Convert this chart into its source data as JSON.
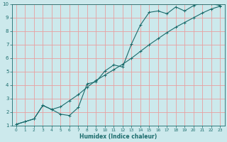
{
  "xlabel": "Humidex (Indice chaleur)",
  "ylabel": "",
  "background_color": "#cce9ec",
  "grid_color": "#e8a0a0",
  "line_color": "#1a6b6b",
  "xlim": [
    -0.5,
    23.5
  ],
  "ylim": [
    1,
    10
  ],
  "xticks": [
    0,
    1,
    2,
    3,
    4,
    5,
    6,
    7,
    8,
    9,
    10,
    11,
    12,
    13,
    14,
    15,
    16,
    17,
    18,
    19,
    20,
    21,
    22,
    23
  ],
  "yticks": [
    1,
    2,
    3,
    4,
    5,
    6,
    7,
    8,
    9,
    10
  ],
  "line1_x": [
    0,
    1,
    2,
    3,
    4,
    5,
    6,
    7,
    8,
    9,
    10,
    11,
    12,
    13,
    14,
    15,
    16,
    17,
    18,
    19,
    20,
    21,
    22,
    23
  ],
  "line1_y": [
    1.1,
    1.3,
    1.5,
    2.5,
    2.2,
    1.85,
    1.75,
    2.35,
    4.1,
    4.25,
    5.05,
    5.5,
    5.35,
    7.05,
    8.45,
    9.4,
    9.5,
    9.3,
    9.8,
    9.5,
    9.9,
    10.1,
    10.05,
    9.9
  ],
  "line2_x": [
    0,
    1,
    2,
    3,
    4,
    5,
    6,
    7,
    8,
    9,
    10,
    11,
    12,
    13,
    14,
    15,
    16,
    17,
    18,
    19,
    20,
    21,
    22,
    23
  ],
  "line2_y": [
    1.1,
    1.3,
    1.5,
    2.5,
    2.2,
    2.4,
    2.85,
    3.3,
    3.85,
    4.35,
    4.75,
    5.15,
    5.55,
    6.0,
    6.5,
    7.0,
    7.45,
    7.9,
    8.3,
    8.65,
    9.0,
    9.35,
    9.65,
    9.85
  ]
}
